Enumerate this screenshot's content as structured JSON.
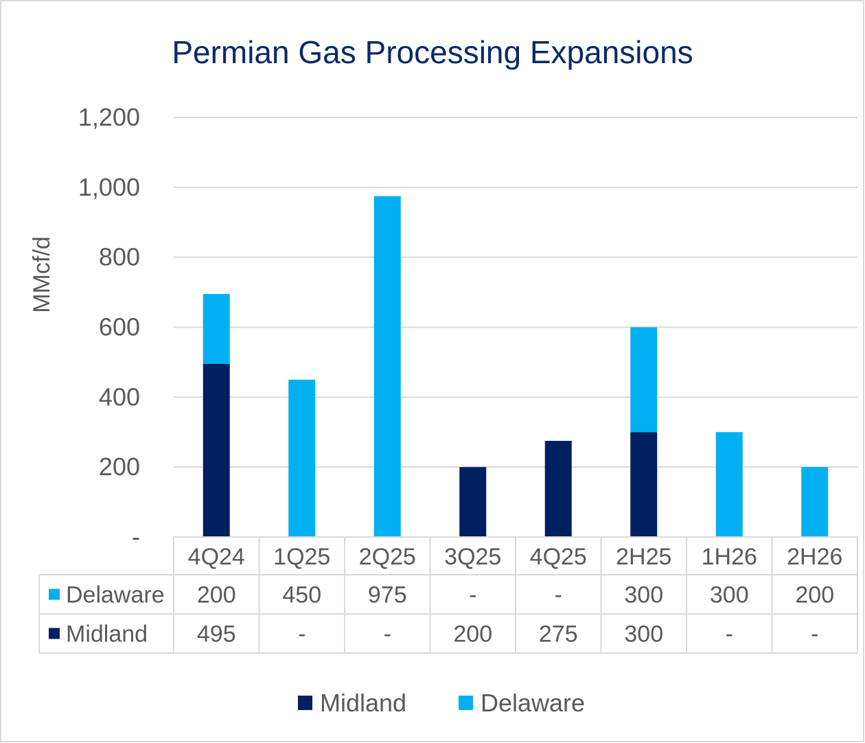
{
  "chart_data": {
    "type": "bar",
    "stacked": true,
    "title": "Permian Gas Processing Expansions",
    "ylabel": "MMcf/d",
    "xlabel": "",
    "ylim": [
      0,
      1200
    ],
    "yticks": [
      {
        "value": 0,
        "label": "-"
      },
      {
        "value": 200,
        "label": "200"
      },
      {
        "value": 400,
        "label": "400"
      },
      {
        "value": 600,
        "label": "600"
      },
      {
        "value": 800,
        "label": "800"
      },
      {
        "value": 1000,
        "label": "1,000"
      },
      {
        "value": 1200,
        "label": "1,200"
      }
    ],
    "grid": true,
    "categories": [
      "4Q24",
      "1Q25",
      "2Q25",
      "3Q25",
      "4Q25",
      "2H25",
      "1H26",
      "2H26"
    ],
    "series": [
      {
        "name": "Midland",
        "color": "#002060",
        "values": [
          495,
          0,
          0,
          200,
          275,
          300,
          0,
          0
        ],
        "labels": [
          "495",
          "-",
          "-",
          "200",
          "275",
          "300",
          "-",
          "-"
        ]
      },
      {
        "name": "Delaware",
        "color": "#00B0F0",
        "values": [
          200,
          450,
          975,
          0,
          0,
          300,
          300,
          200
        ],
        "labels": [
          "200",
          "450",
          "975",
          "-",
          "-",
          "300",
          "300",
          "200"
        ]
      }
    ],
    "data_table": {
      "row_order": [
        "Delaware",
        "Midland"
      ]
    },
    "legend": {
      "position": "bottom",
      "order": [
        "Midland",
        "Delaware"
      ]
    },
    "colors": {
      "title": "#0A2A66",
      "text": "#595959",
      "grid": "#D9D9D9",
      "border": "#D9D9D9"
    }
  }
}
